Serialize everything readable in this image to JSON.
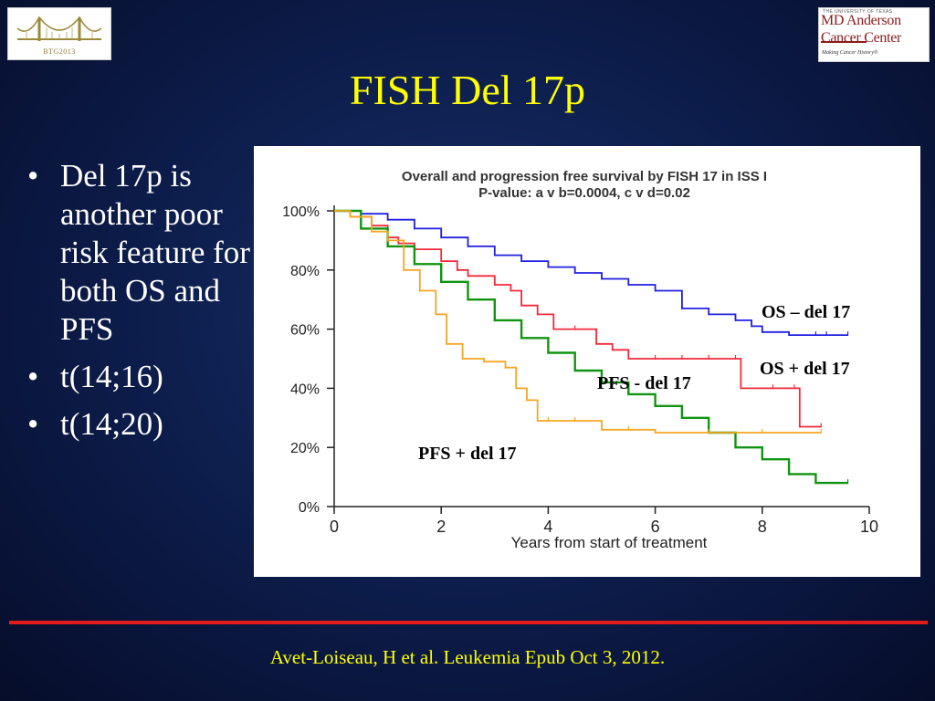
{
  "slide": {
    "title": "FISH Del 17p",
    "bullets": [
      "Del 17p is another poor risk feature for both OS and PFS",
      "t(14;16)",
      "t(14;20)"
    ],
    "bullet_glyph": "•",
    "citation": "Avet-Loiseau, H et al. Leukemia Epub Oct 3, 2012."
  },
  "logos": {
    "left": {
      "caption": "BTG2013",
      "icon": "bridge-icon"
    },
    "right": {
      "university": "THE UNIVERSITY OF TEXAS",
      "line1": "MD Anderson",
      "line2": "Cancer Center",
      "tagline": "Making Cancer History®"
    }
  },
  "colors": {
    "title": "#ffff00",
    "text": "#ffffff",
    "rule": "#e31b1b",
    "os_minus": "#2020e0",
    "os_plus": "#f02a3a",
    "pfs_minus": "#119411",
    "pfs_plus": "#f5a623"
  },
  "chart_data": {
    "type": "line",
    "title": "Overall and progression free survival by FISH 17 in ISS I",
    "subtitle": "P-value: a v b=0.0004, c v d=0.02",
    "xlabel": "Years from start of treatment",
    "ylabel": "",
    "xlim": [
      0,
      10
    ],
    "ylim": [
      0,
      100
    ],
    "xticks": [
      0,
      2,
      4,
      6,
      8,
      10
    ],
    "yticks": [
      0,
      20,
      40,
      60,
      80,
      100
    ],
    "ytick_labels": [
      "0%",
      "20%",
      "40%",
      "60%",
      "80%",
      "100%"
    ],
    "grid": false,
    "series": [
      {
        "name": "OS – del 17",
        "color": "#2020e0",
        "x": [
          0,
          0.5,
          1,
          1.5,
          2,
          2.5,
          3,
          3.5,
          4,
          4.5,
          5,
          5.5,
          6,
          6.5,
          7,
          7.5,
          7.8,
          8,
          8.5,
          9,
          9.2,
          9.6
        ],
        "y": [
          100,
          99,
          97,
          94,
          91,
          88,
          85,
          83,
          81,
          79,
          77,
          75,
          73,
          67,
          65,
          63,
          61,
          59,
          58,
          58,
          58,
          58
        ]
      },
      {
        "name": "OS + del 17",
        "color": "#f02a3a",
        "x": [
          0,
          0.3,
          0.7,
          1.0,
          1.2,
          1.5,
          2.0,
          2.3,
          2.5,
          3.0,
          3.3,
          3.5,
          3.8,
          4.1,
          4.5,
          4.9,
          5.2,
          5.5,
          6.0,
          6.5,
          7.0,
          7.5,
          7.6,
          8.2,
          8.6,
          8.7,
          9.1
        ],
        "y": [
          100,
          98,
          95,
          91,
          89,
          87,
          83,
          80,
          78,
          75,
          73,
          68,
          65,
          60,
          60,
          55,
          53,
          50,
          50,
          50,
          50,
          50,
          40,
          40,
          40,
          27,
          27
        ]
      },
      {
        "name": "PFS - del 17",
        "color": "#119411",
        "x": [
          0,
          0.5,
          1,
          1.5,
          2,
          2.5,
          3,
          3.5,
          4,
          4.5,
          5,
          5.5,
          6,
          6.5,
          7,
          7.5,
          8,
          8.5,
          9,
          9.6
        ],
        "y": [
          100,
          94,
          88,
          82,
          76,
          70,
          63,
          57,
          52,
          46,
          42,
          38,
          34,
          30,
          25,
          20,
          16,
          11,
          8,
          8
        ]
      },
      {
        "name": "PFS + del 17",
        "color": "#f5a623",
        "x": [
          0,
          0.3,
          0.7,
          1.0,
          1.3,
          1.6,
          1.9,
          2.1,
          2.4,
          2.8,
          3.2,
          3.4,
          3.6,
          3.8,
          4.0,
          4.5,
          5.0,
          5.5,
          6.0,
          7.0,
          8.0,
          9.1
        ],
        "y": [
          100,
          98,
          93,
          90,
          80,
          73,
          65,
          55,
          50,
          49,
          47,
          40,
          36,
          29,
          29,
          29,
          26,
          26,
          25,
          25,
          25,
          25
        ]
      }
    ],
    "annotations": [
      {
        "text": "OS – del 17",
        "series": "OS – del 17"
      },
      {
        "text": "OS + del 17",
        "series": "OS + del 17"
      },
      {
        "text": "PFS - del 17",
        "series": "PFS - del 17"
      },
      {
        "text": "PFS + del 17",
        "series": "PFS + del 17"
      }
    ]
  }
}
